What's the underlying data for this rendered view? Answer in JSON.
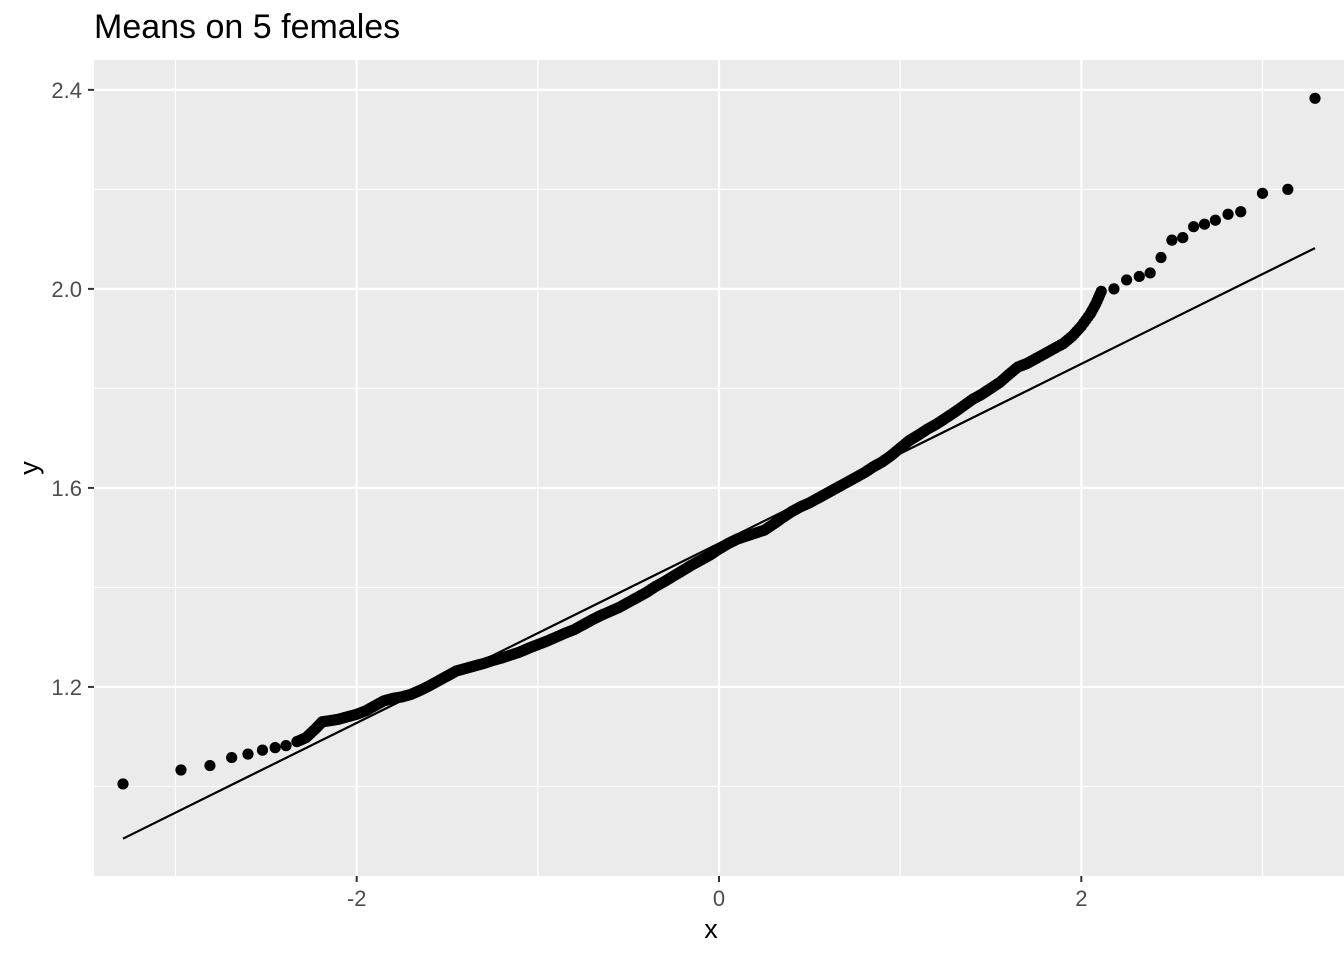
{
  "chart_data": {
    "type": "scatter",
    "title": "Means on 5 females",
    "xlabel": "x",
    "ylabel": "y",
    "xlim": [
      -3.45,
      3.45
    ],
    "ylim": [
      0.82,
      2.46
    ],
    "x_ticks": [
      -2,
      0,
      2
    ],
    "x_tick_labels": [
      "-2",
      "0",
      "2"
    ],
    "y_ticks": [
      1.2,
      1.6,
      2.0,
      2.4
    ],
    "y_tick_labels": [
      "1.2",
      "1.6",
      "2.0",
      "2.4"
    ],
    "grid": true,
    "background": "#ebebeb",
    "grid_color": "#ffffff",
    "point_color": "#000000",
    "reference_line": {
      "x": [
        -3.29,
        3.29
      ],
      "y": [
        0.895,
        2.082
      ]
    },
    "series": [
      {
        "points": [
          [
            -3.29,
            1.005
          ],
          [
            -2.97,
            1.033
          ],
          [
            -2.81,
            1.042
          ],
          [
            -2.69,
            1.058
          ],
          [
            -2.6,
            1.065
          ],
          [
            -2.52,
            1.073
          ],
          [
            -2.45,
            1.078
          ],
          [
            -2.39,
            1.082
          ],
          [
            -2.33,
            1.09
          ],
          [
            -2.28,
            1.098
          ],
          [
            -2.23,
            1.115
          ],
          [
            -2.19,
            1.13
          ],
          [
            -2.15,
            1.132
          ],
          [
            -2.1,
            1.135
          ],
          [
            -2.05,
            1.14
          ],
          [
            -2.0,
            1.145
          ],
          [
            -1.95,
            1.152
          ],
          [
            -1.9,
            1.162
          ],
          [
            -1.85,
            1.172
          ],
          [
            -1.8,
            1.177
          ],
          [
            -1.75,
            1.18
          ],
          [
            -1.7,
            1.185
          ],
          [
            -1.65,
            1.193
          ],
          [
            -1.6,
            1.202
          ],
          [
            -1.55,
            1.212
          ],
          [
            -1.5,
            1.222
          ],
          [
            -1.45,
            1.232
          ],
          [
            -1.4,
            1.237
          ],
          [
            -1.35,
            1.242
          ],
          [
            -1.3,
            1.247
          ],
          [
            -1.25,
            1.253
          ],
          [
            -1.2,
            1.258
          ],
          [
            -1.15,
            1.264
          ],
          [
            -1.1,
            1.27
          ],
          [
            -1.05,
            1.278
          ],
          [
            -1.0,
            1.285
          ],
          [
            -0.95,
            1.292
          ],
          [
            -0.9,
            1.3
          ],
          [
            -0.85,
            1.308
          ],
          [
            -0.8,
            1.315
          ],
          [
            -0.75,
            1.325
          ],
          [
            -0.7,
            1.335
          ],
          [
            -0.65,
            1.344
          ],
          [
            -0.6,
            1.352
          ],
          [
            -0.55,
            1.36
          ],
          [
            -0.5,
            1.37
          ],
          [
            -0.45,
            1.38
          ],
          [
            -0.4,
            1.39
          ],
          [
            -0.35,
            1.402
          ],
          [
            -0.3,
            1.412
          ],
          [
            -0.25,
            1.423
          ],
          [
            -0.2,
            1.434
          ],
          [
            -0.15,
            1.445
          ],
          [
            -0.1,
            1.455
          ],
          [
            -0.05,
            1.465
          ],
          [
            0.0,
            1.477
          ],
          [
            0.05,
            1.488
          ],
          [
            0.1,
            1.497
          ],
          [
            0.15,
            1.503
          ],
          [
            0.2,
            1.509
          ],
          [
            0.25,
            1.515
          ],
          [
            0.3,
            1.527
          ],
          [
            0.35,
            1.54
          ],
          [
            0.4,
            1.552
          ],
          [
            0.45,
            1.562
          ],
          [
            0.5,
            1.57
          ],
          [
            0.55,
            1.58
          ],
          [
            0.6,
            1.59
          ],
          [
            0.65,
            1.6
          ],
          [
            0.7,
            1.61
          ],
          [
            0.75,
            1.62
          ],
          [
            0.8,
            1.63
          ],
          [
            0.85,
            1.642
          ],
          [
            0.9,
            1.652
          ],
          [
            0.95,
            1.665
          ],
          [
            1.0,
            1.68
          ],
          [
            1.05,
            1.695
          ],
          [
            1.1,
            1.706
          ],
          [
            1.15,
            1.718
          ],
          [
            1.2,
            1.728
          ],
          [
            1.25,
            1.74
          ],
          [
            1.3,
            1.752
          ],
          [
            1.35,
            1.765
          ],
          [
            1.4,
            1.778
          ],
          [
            1.45,
            1.788
          ],
          [
            1.5,
            1.8
          ],
          [
            1.55,
            1.812
          ],
          [
            1.6,
            1.828
          ],
          [
            1.65,
            1.843
          ],
          [
            1.7,
            1.85
          ],
          [
            1.75,
            1.86
          ],
          [
            1.8,
            1.87
          ],
          [
            1.85,
            1.88
          ],
          [
            1.9,
            1.89
          ],
          [
            1.95,
            1.905
          ],
          [
            2.0,
            1.925
          ],
          [
            2.05,
            1.95
          ],
          [
            2.08,
            1.97
          ],
          [
            2.11,
            1.995
          ],
          [
            2.18,
            2.0
          ],
          [
            2.25,
            2.018
          ],
          [
            2.32,
            2.025
          ],
          [
            2.38,
            2.032
          ],
          [
            2.44,
            2.063
          ],
          [
            2.5,
            2.098
          ],
          [
            2.56,
            2.103
          ],
          [
            2.62,
            2.125
          ],
          [
            2.68,
            2.13
          ],
          [
            2.74,
            2.138
          ],
          [
            2.81,
            2.15
          ],
          [
            2.88,
            2.155
          ],
          [
            3.0,
            2.192
          ],
          [
            3.14,
            2.2
          ],
          [
            3.29,
            2.383
          ]
        ]
      }
    ]
  }
}
